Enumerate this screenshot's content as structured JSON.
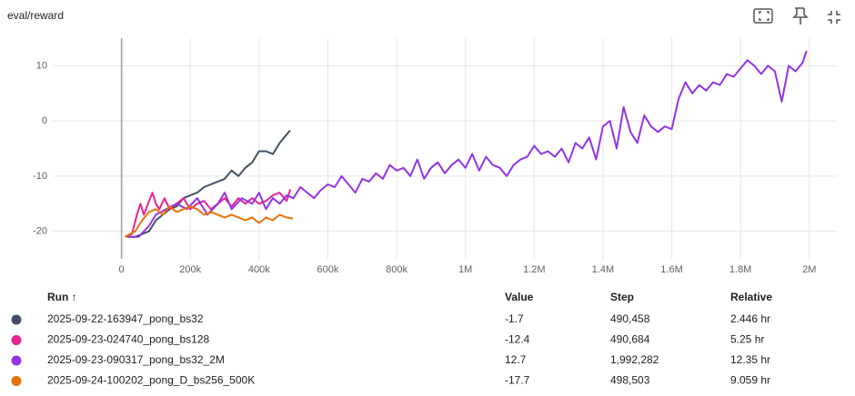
{
  "chart_data": {
    "type": "line",
    "title": "eval/reward",
    "xlim": [
      -200000,
      2080000
    ],
    "xticks": [
      {
        "value": 0,
        "label": "0"
      },
      {
        "value": 200000,
        "label": "200k"
      },
      {
        "value": 400000,
        "label": "400k"
      },
      {
        "value": 600000,
        "label": "600k"
      },
      {
        "value": 800000,
        "label": "800k"
      },
      {
        "value": 1000000,
        "label": "1M"
      },
      {
        "value": 1200000,
        "label": "1.2M"
      },
      {
        "value": 1400000,
        "label": "1.4M"
      },
      {
        "value": 1600000,
        "label": "1.6M"
      },
      {
        "value": 1800000,
        "label": "1.8M"
      },
      {
        "value": 2000000,
        "label": "2M"
      }
    ],
    "ylim": [
      -25,
      15
    ],
    "yticks": [
      -20,
      -10,
      0,
      10
    ],
    "grid": true,
    "series": [
      {
        "name": "2025-09-22-163947_pong_bs32",
        "color": "#425066",
        "x": [
          15000,
          40000,
          60000,
          80000,
          100000,
          120000,
          140000,
          160000,
          180000,
          200000,
          220000,
          240000,
          260000,
          280000,
          300000,
          320000,
          340000,
          360000,
          380000,
          400000,
          420000,
          440000,
          460000,
          490458
        ],
        "values": [
          -21,
          -21,
          -20.5,
          -20,
          -18,
          -17,
          -16,
          -15.5,
          -14,
          -13.5,
          -13,
          -12,
          -11.5,
          -11,
          -10.5,
          -9,
          -10,
          -8.5,
          -7.5,
          -5.5,
          -5.5,
          -6,
          -4,
          -1.7
        ]
      },
      {
        "name": "2025-09-23-024740_pong_bs128",
        "color": "#e52592",
        "x": [
          10000,
          30000,
          45000,
          55000,
          65000,
          80000,
          90000,
          100000,
          110000,
          125000,
          140000,
          160000,
          180000,
          200000,
          220000,
          240000,
          260000,
          280000,
          300000,
          320000,
          340000,
          360000,
          380000,
          400000,
          420000,
          440000,
          460000,
          480000,
          490684
        ],
        "values": [
          -21,
          -20.5,
          -17,
          -15,
          -17,
          -14.5,
          -13,
          -15,
          -16,
          -14,
          -16,
          -15,
          -14,
          -16,
          -15,
          -14.5,
          -16,
          -15,
          -14,
          -15.5,
          -14,
          -15,
          -14,
          -15,
          -14.5,
          -13.5,
          -13,
          -14.5,
          -12.4
        ]
      },
      {
        "name": "2025-09-23-090317_pong_bs32_2M",
        "color": "#9334e6",
        "x": [
          20000,
          50000,
          80000,
          100000,
          130000,
          160000,
          190000,
          220000,
          250000,
          280000,
          300000,
          320000,
          350000,
          380000,
          400000,
          420000,
          440000,
          460000,
          480000,
          500000,
          520000,
          540000,
          560000,
          580000,
          600000,
          620000,
          640000,
          660000,
          680000,
          700000,
          720000,
          740000,
          760000,
          780000,
          800000,
          820000,
          840000,
          860000,
          880000,
          900000,
          920000,
          940000,
          960000,
          980000,
          1000000,
          1020000,
          1040000,
          1060000,
          1080000,
          1100000,
          1120000,
          1140000,
          1160000,
          1180000,
          1200000,
          1220000,
          1240000,
          1260000,
          1280000,
          1300000,
          1320000,
          1340000,
          1360000,
          1380000,
          1400000,
          1420000,
          1440000,
          1460000,
          1480000,
          1500000,
          1520000,
          1540000,
          1560000,
          1580000,
          1600000,
          1620000,
          1640000,
          1660000,
          1680000,
          1700000,
          1720000,
          1740000,
          1760000,
          1780000,
          1800000,
          1820000,
          1840000,
          1860000,
          1880000,
          1900000,
          1920000,
          1940000,
          1960000,
          1980000,
          1992282
        ],
        "values": [
          -21,
          -21,
          -19,
          -17,
          -16,
          -15,
          -16,
          -14,
          -17,
          -15,
          -13,
          -16,
          -14,
          -15,
          -13,
          -16,
          -14,
          -15,
          -13.5,
          -14,
          -12,
          -13,
          -14,
          -12.5,
          -11.5,
          -12,
          -10,
          -11.5,
          -13,
          -10.5,
          -11,
          -9.5,
          -10.5,
          -8,
          -9,
          -8.5,
          -10,
          -7,
          -10.5,
          -8.5,
          -7.5,
          -9.5,
          -8,
          -7,
          -8.5,
          -6,
          -9,
          -6.5,
          -8,
          -8.5,
          -10,
          -8,
          -7,
          -6.5,
          -4.5,
          -6,
          -5.5,
          -6.5,
          -5,
          -7.5,
          -4,
          -5,
          -3,
          -7,
          -1,
          0,
          -5,
          2.5,
          -2,
          -4,
          1,
          -1,
          -2,
          -1,
          -1.5,
          4,
          7,
          5,
          6.5,
          5.5,
          7,
          6.5,
          8.5,
          8,
          9.5,
          11,
          10,
          8.5,
          10,
          9,
          3.5,
          10,
          9,
          10.5,
          12.7
        ]
      },
      {
        "name": "2025-09-24-100202_pong_D_bs256_500K",
        "color": "#e8710a",
        "x": [
          10000,
          40000,
          60000,
          80000,
          100000,
          120000,
          140000,
          160000,
          180000,
          200000,
          220000,
          240000,
          260000,
          280000,
          300000,
          320000,
          340000,
          360000,
          380000,
          400000,
          420000,
          440000,
          460000,
          480000,
          498503
        ],
        "values": [
          -21,
          -20,
          -18,
          -16.5,
          -16,
          -17,
          -15.5,
          -16.5,
          -16,
          -15.5,
          -16,
          -17,
          -16.5,
          -17,
          -17.5,
          -17,
          -17.5,
          -18,
          -17.5,
          -18.5,
          -17.5,
          -18,
          -17,
          -17.5,
          -17.7
        ]
      }
    ]
  },
  "table": {
    "columns": [
      "Run ↑",
      "Value",
      "Step",
      "Relative"
    ],
    "rows": [
      [
        "-1.7",
        "490,458",
        "2.446 hr"
      ],
      [
        "-12.4",
        "490,684",
        "5.25 hr"
      ],
      [
        "12.7",
        "1,992,282",
        "12.35 hr"
      ],
      [
        "-17.7",
        "498,503",
        "9.059 hr"
      ]
    ]
  }
}
